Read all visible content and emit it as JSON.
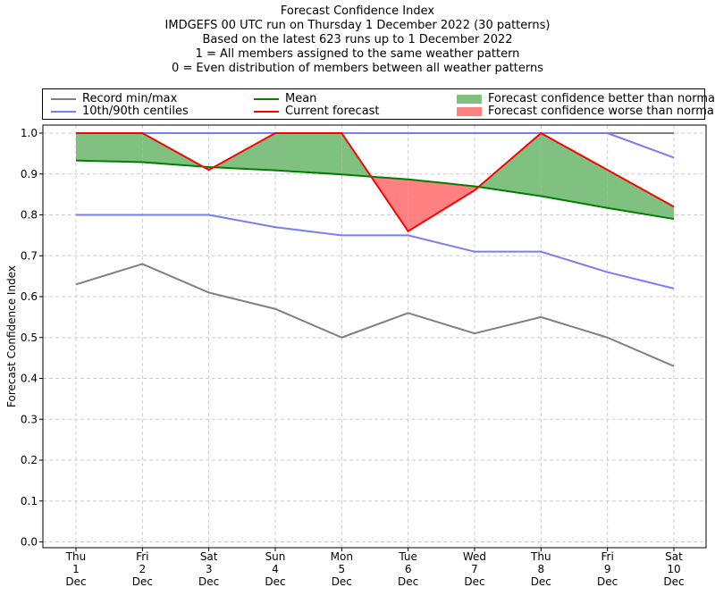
{
  "titles": [
    "Forecast Confidence Index",
    "IMDGEFS 00 UTC run on Thursday 1 December 2022 (30 patterns)",
    "Based on the latest 623 runs up to 1 December 2022",
    "1 = All members assigned to the same weather pattern",
    "0 = Even distribution of members between all weather patterns"
  ],
  "legend": {
    "record": "Record min/max",
    "centiles": "10th/90th centiles",
    "mean": "Mean",
    "current": "Current forecast",
    "better": "Forecast confidence better than normal",
    "worse": "Forecast confidence worse than normal"
  },
  "colors": {
    "record": "#808080",
    "centiles": "#7b7bf7",
    "mean": "#008000",
    "current": "#ff0000",
    "better": "#80c080",
    "worse": "#ff8080",
    "grid": "#cccccc"
  },
  "chart_data": {
    "type": "line",
    "ylabel": "Forecast Confidence Index",
    "ylim": [
      0,
      1
    ],
    "yticks": [
      "0.0",
      "0.1",
      "0.2",
      "0.3",
      "0.4",
      "0.5",
      "0.6",
      "0.7",
      "0.8",
      "0.9",
      "1.0"
    ],
    "grid": true,
    "legend_position": "top",
    "categories": [
      [
        "Thu",
        "1",
        "Dec"
      ],
      [
        "Fri",
        "2",
        "Dec"
      ],
      [
        "Sat",
        "3",
        "Dec"
      ],
      [
        "Sun",
        "4",
        "Dec"
      ],
      [
        "Mon",
        "5",
        "Dec"
      ],
      [
        "Tue",
        "6",
        "Dec"
      ],
      [
        "Wed",
        "7",
        "Dec"
      ],
      [
        "Thu",
        "8",
        "Dec"
      ],
      [
        "Fri",
        "9",
        "Dec"
      ],
      [
        "Sat",
        "10",
        "Dec"
      ]
    ],
    "series": [
      {
        "key": "record_max",
        "values": [
          1.0,
          1.0,
          1.0,
          1.0,
          1.0,
          1.0,
          1.0,
          1.0,
          1.0,
          1.0
        ]
      },
      {
        "key": "record_min",
        "values": [
          0.63,
          0.68,
          0.61,
          0.57,
          0.5,
          0.56,
          0.51,
          0.55,
          0.5,
          0.43
        ]
      },
      {
        "key": "centile_90",
        "values": [
          1.0,
          1.0,
          1.0,
          1.0,
          1.0,
          1.0,
          1.0,
          1.0,
          1.0,
          0.94
        ]
      },
      {
        "key": "centile_10",
        "values": [
          0.8,
          0.8,
          0.8,
          0.77,
          0.75,
          0.75,
          0.71,
          0.71,
          0.66,
          0.62
        ]
      },
      {
        "key": "mean",
        "values": [
          0.933,
          0.929,
          0.917,
          0.909,
          0.899,
          0.887,
          0.87,
          0.846,
          0.817,
          0.79
        ]
      },
      {
        "key": "current",
        "values": [
          1.0,
          1.0,
          0.91,
          1.0,
          1.0,
          0.76,
          0.86,
          1.0,
          0.91,
          0.82
        ]
      }
    ]
  }
}
